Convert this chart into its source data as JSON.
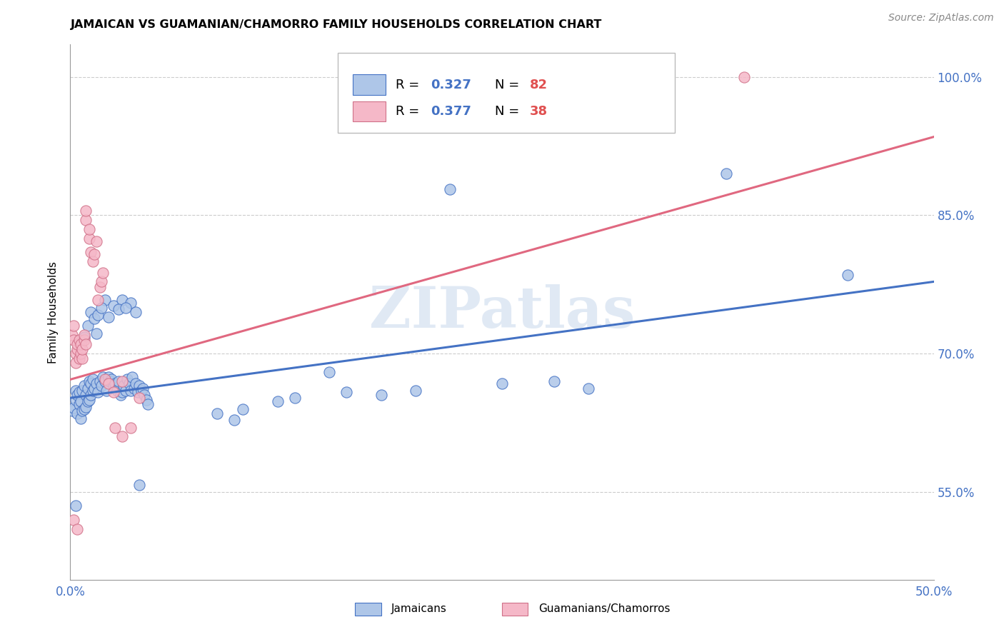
{
  "title": "JAMAICAN VS GUAMANIAN/CHAMORRO FAMILY HOUSEHOLDS CORRELATION CHART",
  "source": "Source: ZipAtlas.com",
  "ylabel": "Family Households",
  "ytick_labels": [
    "55.0%",
    "70.0%",
    "85.0%",
    "100.0%"
  ],
  "ytick_values": [
    0.55,
    0.7,
    0.85,
    1.0
  ],
  "xlim": [
    0.0,
    0.5
  ],
  "ylim": [
    0.455,
    1.035
  ],
  "color_blue": "#aec6e8",
  "color_pink": "#f5b8c8",
  "line_color_blue": "#4472c4",
  "line_color_pink": "#e06880",
  "watermark": "ZIPatlas",
  "blue_line": [
    0.0,
    0.5,
    0.652,
    0.778
  ],
  "pink_line": [
    0.0,
    0.5,
    0.672,
    0.935
  ],
  "jamaicans": [
    [
      0.001,
      0.638
    ],
    [
      0.002,
      0.641
    ],
    [
      0.003,
      0.65
    ],
    [
      0.003,
      0.66
    ],
    [
      0.004,
      0.635
    ],
    [
      0.004,
      0.655
    ],
    [
      0.005,
      0.645
    ],
    [
      0.005,
      0.658
    ],
    [
      0.006,
      0.63
    ],
    [
      0.006,
      0.648
    ],
    [
      0.007,
      0.638
    ],
    [
      0.007,
      0.66
    ],
    [
      0.008,
      0.64
    ],
    [
      0.008,
      0.665
    ],
    [
      0.009,
      0.642
    ],
    [
      0.009,
      0.655
    ],
    [
      0.01,
      0.648
    ],
    [
      0.01,
      0.662
    ],
    [
      0.011,
      0.65
    ],
    [
      0.011,
      0.67
    ],
    [
      0.012,
      0.655
    ],
    [
      0.012,
      0.668
    ],
    [
      0.013,
      0.66
    ],
    [
      0.013,
      0.672
    ],
    [
      0.014,
      0.662
    ],
    [
      0.015,
      0.668
    ],
    [
      0.016,
      0.658
    ],
    [
      0.017,
      0.67
    ],
    [
      0.018,
      0.665
    ],
    [
      0.019,
      0.675
    ],
    [
      0.02,
      0.67
    ],
    [
      0.021,
      0.66
    ],
    [
      0.022,
      0.675
    ],
    [
      0.023,
      0.67
    ],
    [
      0.024,
      0.672
    ],
    [
      0.025,
      0.665
    ],
    [
      0.026,
      0.668
    ],
    [
      0.027,
      0.66
    ],
    [
      0.028,
      0.67
    ],
    [
      0.029,
      0.655
    ],
    [
      0.03,
      0.658
    ],
    [
      0.031,
      0.665
    ],
    [
      0.032,
      0.66
    ],
    [
      0.033,
      0.672
    ],
    [
      0.034,
      0.668
    ],
    [
      0.035,
      0.66
    ],
    [
      0.036,
      0.675
    ],
    [
      0.037,
      0.662
    ],
    [
      0.038,
      0.668
    ],
    [
      0.039,
      0.658
    ],
    [
      0.04,
      0.665
    ],
    [
      0.041,
      0.66
    ],
    [
      0.042,
      0.662
    ],
    [
      0.043,
      0.655
    ],
    [
      0.044,
      0.65
    ],
    [
      0.045,
      0.645
    ],
    [
      0.02,
      0.758
    ],
    [
      0.008,
      0.718
    ],
    [
      0.01,
      0.73
    ],
    [
      0.012,
      0.745
    ],
    [
      0.014,
      0.738
    ],
    [
      0.016,
      0.742
    ],
    [
      0.018,
      0.75
    ],
    [
      0.006,
      0.71
    ],
    [
      0.025,
      0.752
    ],
    [
      0.03,
      0.758
    ],
    [
      0.028,
      0.748
    ],
    [
      0.035,
      0.755
    ],
    [
      0.015,
      0.722
    ],
    [
      0.022,
      0.74
    ],
    [
      0.032,
      0.75
    ],
    [
      0.038,
      0.745
    ],
    [
      0.003,
      0.535
    ],
    [
      0.04,
      0.558
    ],
    [
      0.22,
      0.878
    ],
    [
      0.38,
      0.895
    ],
    [
      0.45,
      0.785
    ],
    [
      0.15,
      0.68
    ],
    [
      0.18,
      0.655
    ],
    [
      0.2,
      0.66
    ],
    [
      0.085,
      0.635
    ],
    [
      0.095,
      0.628
    ],
    [
      0.1,
      0.64
    ],
    [
      0.12,
      0.648
    ],
    [
      0.13,
      0.652
    ],
    [
      0.16,
      0.658
    ],
    [
      0.25,
      0.668
    ],
    [
      0.28,
      0.67
    ],
    [
      0.3,
      0.662
    ]
  ],
  "guamanians": [
    [
      0.001,
      0.72
    ],
    [
      0.002,
      0.715
    ],
    [
      0.002,
      0.73
    ],
    [
      0.003,
      0.7
    ],
    [
      0.003,
      0.69
    ],
    [
      0.004,
      0.705
    ],
    [
      0.004,
      0.71
    ],
    [
      0.005,
      0.695
    ],
    [
      0.005,
      0.715
    ],
    [
      0.006,
      0.7
    ],
    [
      0.006,
      0.71
    ],
    [
      0.007,
      0.695
    ],
    [
      0.007,
      0.705
    ],
    [
      0.008,
      0.715
    ],
    [
      0.008,
      0.72
    ],
    [
      0.009,
      0.71
    ],
    [
      0.009,
      0.845
    ],
    [
      0.009,
      0.855
    ],
    [
      0.011,
      0.825
    ],
    [
      0.011,
      0.835
    ],
    [
      0.012,
      0.81
    ],
    [
      0.013,
      0.8
    ],
    [
      0.014,
      0.808
    ],
    [
      0.015,
      0.822
    ],
    [
      0.016,
      0.758
    ],
    [
      0.017,
      0.772
    ],
    [
      0.018,
      0.778
    ],
    [
      0.019,
      0.788
    ],
    [
      0.02,
      0.672
    ],
    [
      0.022,
      0.668
    ],
    [
      0.025,
      0.658
    ],
    [
      0.026,
      0.62
    ],
    [
      0.03,
      0.61
    ],
    [
      0.035,
      0.62
    ],
    [
      0.03,
      0.67
    ],
    [
      0.04,
      0.652
    ],
    [
      0.002,
      0.52
    ],
    [
      0.004,
      0.51
    ],
    [
      0.39,
      1.0
    ]
  ]
}
